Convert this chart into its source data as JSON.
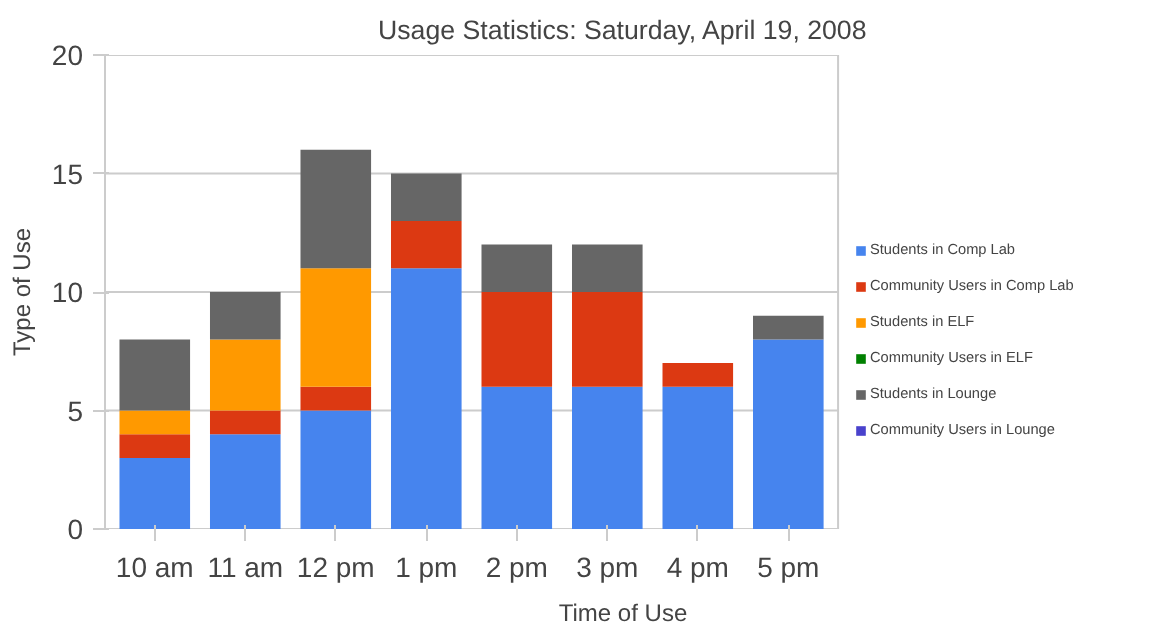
{
  "chart_data": {
    "type": "bar",
    "stacked": true,
    "title": "Usage Statistics: Saturday, April 19, 2008",
    "xlabel": "Time of Use",
    "ylabel": "Type of Use",
    "categories": [
      "10 am",
      "11 am",
      "12 pm",
      "1 pm",
      "2 pm",
      "3 pm",
      "4 pm",
      "5 pm"
    ],
    "series": [
      {
        "name": "Students in Comp Lab",
        "color": "#4684ee",
        "values": [
          3,
          4,
          5,
          11,
          6,
          6,
          6,
          8
        ]
      },
      {
        "name": "Community Users in Comp Lab",
        "color": "#dc3912",
        "values": [
          1,
          1,
          1,
          2,
          4,
          4,
          1,
          0
        ]
      },
      {
        "name": "Students in ELF",
        "color": "#ff9900",
        "values": [
          1,
          3,
          5,
          0,
          0,
          0,
          0,
          0
        ]
      },
      {
        "name": "Community Users in ELF",
        "color": "#008000",
        "values": [
          0,
          0,
          0,
          0,
          0,
          0,
          0,
          0
        ]
      },
      {
        "name": "Students in Lounge",
        "color": "#666666",
        "values": [
          3,
          2,
          5,
          2,
          2,
          2,
          0,
          1
        ]
      },
      {
        "name": "Community Users in Lounge",
        "color": "#4942cc",
        "values": [
          0,
          0,
          0,
          0,
          0,
          0,
          0,
          0
        ]
      }
    ],
    "ylim": [
      0,
      20
    ],
    "yticks": [
      0,
      5,
      10,
      15,
      20
    ],
    "grid": "y",
    "legend": "right"
  }
}
